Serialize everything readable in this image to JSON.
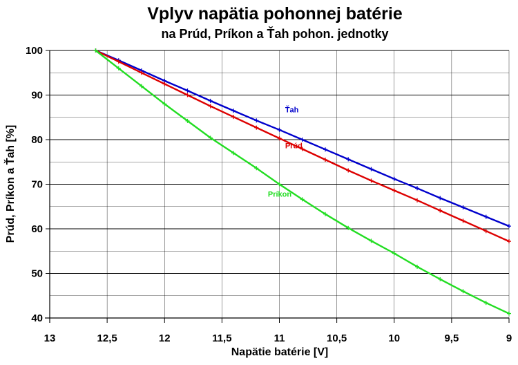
{
  "chart_data": {
    "type": "line",
    "title": "Vplyv napätia pohonnej batérie",
    "subtitle": "na Prúd, Príkon a Ťah pohon. jednotky",
    "xlabel": "Napätie batérie [V]",
    "ylabel": "Prúd, Príkon a Ťah [%]",
    "xlim": [
      13,
      9
    ],
    "ylim": [
      40,
      100
    ],
    "x_reversed": true,
    "grid": true,
    "x_ticks": [
      13,
      12.5,
      12,
      11.5,
      11,
      10.5,
      10,
      9.5,
      9
    ],
    "x_tick_labels": [
      "13",
      "12,5",
      "12",
      "11,5",
      "11",
      "10,5",
      "10",
      "9,5",
      "9"
    ],
    "y_ticks": [
      40,
      50,
      60,
      70,
      80,
      90,
      100
    ],
    "y_tick_labels": [
      "40",
      "50",
      "60",
      "70",
      "80",
      "90",
      "100"
    ],
    "series": [
      {
        "name": "Ťah",
        "color": "#0000cc",
        "x": [
          12.6,
          12.4,
          12.2,
          12.0,
          11.8,
          11.6,
          11.4,
          11.2,
          11.0,
          10.8,
          10.6,
          10.4,
          10.2,
          10.0,
          9.8,
          9.6,
          9.4,
          9.2,
          9.0
        ],
        "values": [
          100,
          97.8,
          95.5,
          93.2,
          91.0,
          88.7,
          86.5,
          84.3,
          82.2,
          80.0,
          77.8,
          75.6,
          73.4,
          71.2,
          69.1,
          66.9,
          64.8,
          62.7,
          60.6
        ]
      },
      {
        "name": "Prúd",
        "color": "#dd0000",
        "x": [
          12.6,
          12.4,
          12.2,
          12.0,
          11.8,
          11.6,
          11.4,
          11.2,
          11.0,
          10.8,
          10.6,
          10.4,
          10.2,
          10.0,
          9.8,
          9.6,
          9.4,
          9.2,
          9.0
        ],
        "values": [
          100,
          97.5,
          95.0,
          92.5,
          90.0,
          87.5,
          85.1,
          82.7,
          80.3,
          77.9,
          75.5,
          73.1,
          70.8,
          68.6,
          66.4,
          64.1,
          61.8,
          59.5,
          57.2
        ]
      },
      {
        "name": "Príkon",
        "color": "#22dd22",
        "x": [
          12.6,
          12.4,
          12.2,
          12.0,
          11.8,
          11.6,
          11.4,
          11.2,
          11.0,
          10.8,
          10.6,
          10.4,
          10.2,
          10.0,
          9.8,
          9.6,
          9.4,
          9.2,
          9.0
        ],
        "values": [
          100,
          96.0,
          92.0,
          88.0,
          84.2,
          80.4,
          77.0,
          73.6,
          70.0,
          66.6,
          63.3,
          60.2,
          57.3,
          54.5,
          51.5,
          48.7,
          46.0,
          43.4,
          41.0
        ]
      }
    ],
    "series_labels": [
      {
        "text": "Ťah",
        "x": 10.95,
        "y": 86.1,
        "color": "#0000cc"
      },
      {
        "text": "Prúd",
        "x": 10.95,
        "y": 78.1,
        "color": "#dd0000"
      },
      {
        "text": "Príkon",
        "x": 11.1,
        "y": 67.2,
        "color": "#22dd22"
      }
    ]
  }
}
